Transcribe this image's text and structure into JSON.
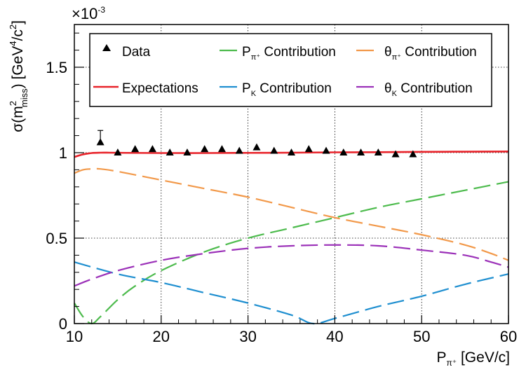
{
  "chart_data": {
    "type": "line",
    "xlabel": {
      "main": "P",
      "sub": "π⁺",
      "unit": " [GeV/c]"
    },
    "ylabel": {
      "main": "σ(m",
      "sup": "2",
      "sub": "miss",
      "unit": ") [GeV",
      "unit_sup1": "4",
      "unit_mid": "/c",
      "unit_sup2": "2",
      "unit_end": "]"
    },
    "multiplier": {
      "base": "×10",
      "exp": "-3"
    },
    "xlim": [
      10,
      60
    ],
    "ylim": [
      0,
      1.75
    ],
    "xticks": [
      "10",
      "20",
      "30",
      "40",
      "50",
      "60"
    ],
    "yticks": [
      "0",
      "0.5",
      "1",
      "1.5"
    ],
    "grid": "dotted, at major ticks",
    "legend_placement": "top",
    "legend": [
      {
        "key": "data",
        "label": "Data",
        "kind": "marker",
        "color": "#000000"
      },
      {
        "key": "p_pi",
        "label_main": "P",
        "label_sub": "π⁺",
        "label_rest": " Contribution",
        "kind": "dashed",
        "color": "#4dbb4d"
      },
      {
        "key": "theta_pi",
        "label_main": "θ",
        "label_sub": "π⁺",
        "label_rest": " Contribution",
        "kind": "dashed",
        "color": "#f2994a"
      },
      {
        "key": "expect",
        "label": "Expectations",
        "kind": "solid",
        "color": "#e8232a"
      },
      {
        "key": "p_k",
        "label_main": "P",
        "label_sub": "K",
        "label_rest": " Contribution",
        "kind": "dashed",
        "color": "#1f8fd0"
      },
      {
        "key": "theta_k",
        "label_main": "θ",
        "label_sub": "K",
        "label_rest": " Contribution",
        "kind": "dashed",
        "color": "#9b30b8"
      }
    ],
    "data_points": {
      "x": [
        13,
        15,
        17,
        19,
        21,
        23,
        25,
        27,
        29,
        31,
        33,
        35,
        37,
        39,
        41,
        43,
        45,
        47,
        49
      ],
      "y": [
        1.06,
        1.0,
        1.02,
        1.02,
        1.0,
        1.0,
        1.02,
        1.02,
        1.01,
        1.03,
        1.01,
        1.0,
        1.02,
        1.01,
        1.0,
        1.0,
        1.0,
        0.99,
        0.99
      ],
      "err": [
        0.07,
        0,
        0,
        0,
        0,
        0,
        0,
        0,
        0,
        0,
        0,
        0,
        0,
        0,
        0,
        0,
        0,
        0,
        0
      ]
    },
    "series": [
      {
        "key": "expect",
        "x": [
          10,
          11,
          12,
          13,
          14,
          16,
          20,
          25,
          30,
          35,
          40,
          45,
          50,
          55,
          60
        ],
        "y": [
          0.975,
          0.99,
          0.998,
          1.0,
          1.0,
          0.999,
          0.998,
          0.998,
          0.999,
          1.0,
          1.002,
          1.003,
          1.005,
          1.006,
          1.007
        ]
      },
      {
        "key": "p_pi",
        "x": [
          10,
          11,
          12,
          13,
          15,
          17,
          20,
          25,
          30,
          35,
          40,
          45,
          50,
          55,
          60
        ],
        "y": [
          0.12,
          0.04,
          0.0,
          0.04,
          0.14,
          0.22,
          0.31,
          0.42,
          0.5,
          0.56,
          0.62,
          0.68,
          0.73,
          0.78,
          0.83
        ]
      },
      {
        "key": "theta_pi",
        "x": [
          10,
          11,
          12,
          13,
          15,
          20,
          25,
          30,
          35,
          40,
          45,
          50,
          55,
          58,
          60
        ],
        "y": [
          0.88,
          0.9,
          0.905,
          0.905,
          0.89,
          0.84,
          0.79,
          0.74,
          0.68,
          0.62,
          0.57,
          0.52,
          0.46,
          0.41,
          0.37
        ]
      },
      {
        "key": "p_k",
        "x": [
          10,
          15,
          20,
          25,
          30,
          35,
          37.5,
          40,
          45,
          50,
          55,
          60
        ],
        "y": [
          0.36,
          0.29,
          0.24,
          0.18,
          0.12,
          0.05,
          0.0,
          0.03,
          0.1,
          0.16,
          0.23,
          0.29
        ]
      },
      {
        "key": "theta_k",
        "x": [
          10,
          12,
          15,
          20,
          25,
          30,
          35,
          40,
          45,
          50,
          55,
          58,
          60
        ],
        "y": [
          0.22,
          0.26,
          0.31,
          0.37,
          0.41,
          0.44,
          0.455,
          0.46,
          0.455,
          0.43,
          0.4,
          0.36,
          0.33
        ]
      }
    ]
  }
}
